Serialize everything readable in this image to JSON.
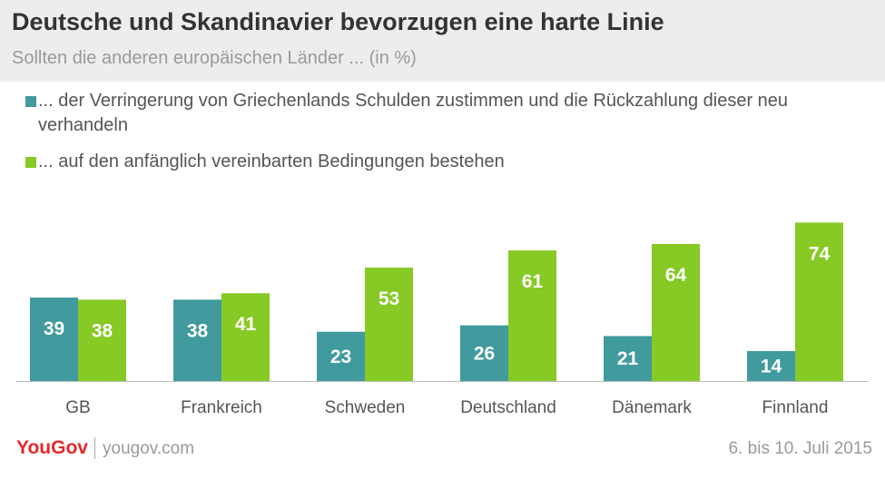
{
  "header": {
    "title": "Deutsche und Skandinavier bevorzugen eine harte Linie",
    "subtitle": "Sollten die anderen europäischen Länder ... (in %)"
  },
  "legend": [
    {
      "label": "... der Verringerung von Griechenlands Schulden zustimmen und die Rückzahlung dieser neu verhandeln",
      "color": "#419a9d"
    },
    {
      "label": "... auf den anfänglich vereinbarten Bedingungen bestehen",
      "color": "#87c925"
    }
  ],
  "chart_data": {
    "type": "bar",
    "categories": [
      "GB",
      "Frankreich",
      "Schweden",
      "Deutschland",
      "Dänemark",
      "Finnland"
    ],
    "series": [
      {
        "name": "... der Verringerung von Griechenlands Schulden zustimmen und die Rückzahlung dieser neu verhandeln",
        "values": [
          39,
          38,
          23,
          26,
          21,
          14
        ],
        "color": "#419a9d"
      },
      {
        "name": "... auf den anfänglich vereinbarten Bedingungen bestehen",
        "values": [
          38,
          41,
          53,
          61,
          64,
          74
        ],
        "color": "#87c925"
      }
    ],
    "title": "Deutsche und Skandinavier bevorzugen eine harte Linie",
    "xlabel": "",
    "ylabel": "",
    "ylim": [
      0,
      80
    ],
    "grid": false,
    "data_labels": true,
    "legend_position": "top"
  },
  "footer": {
    "brand": "YouGov",
    "url": "yougov.com",
    "date": "6. bis 10. Juli 2015"
  }
}
